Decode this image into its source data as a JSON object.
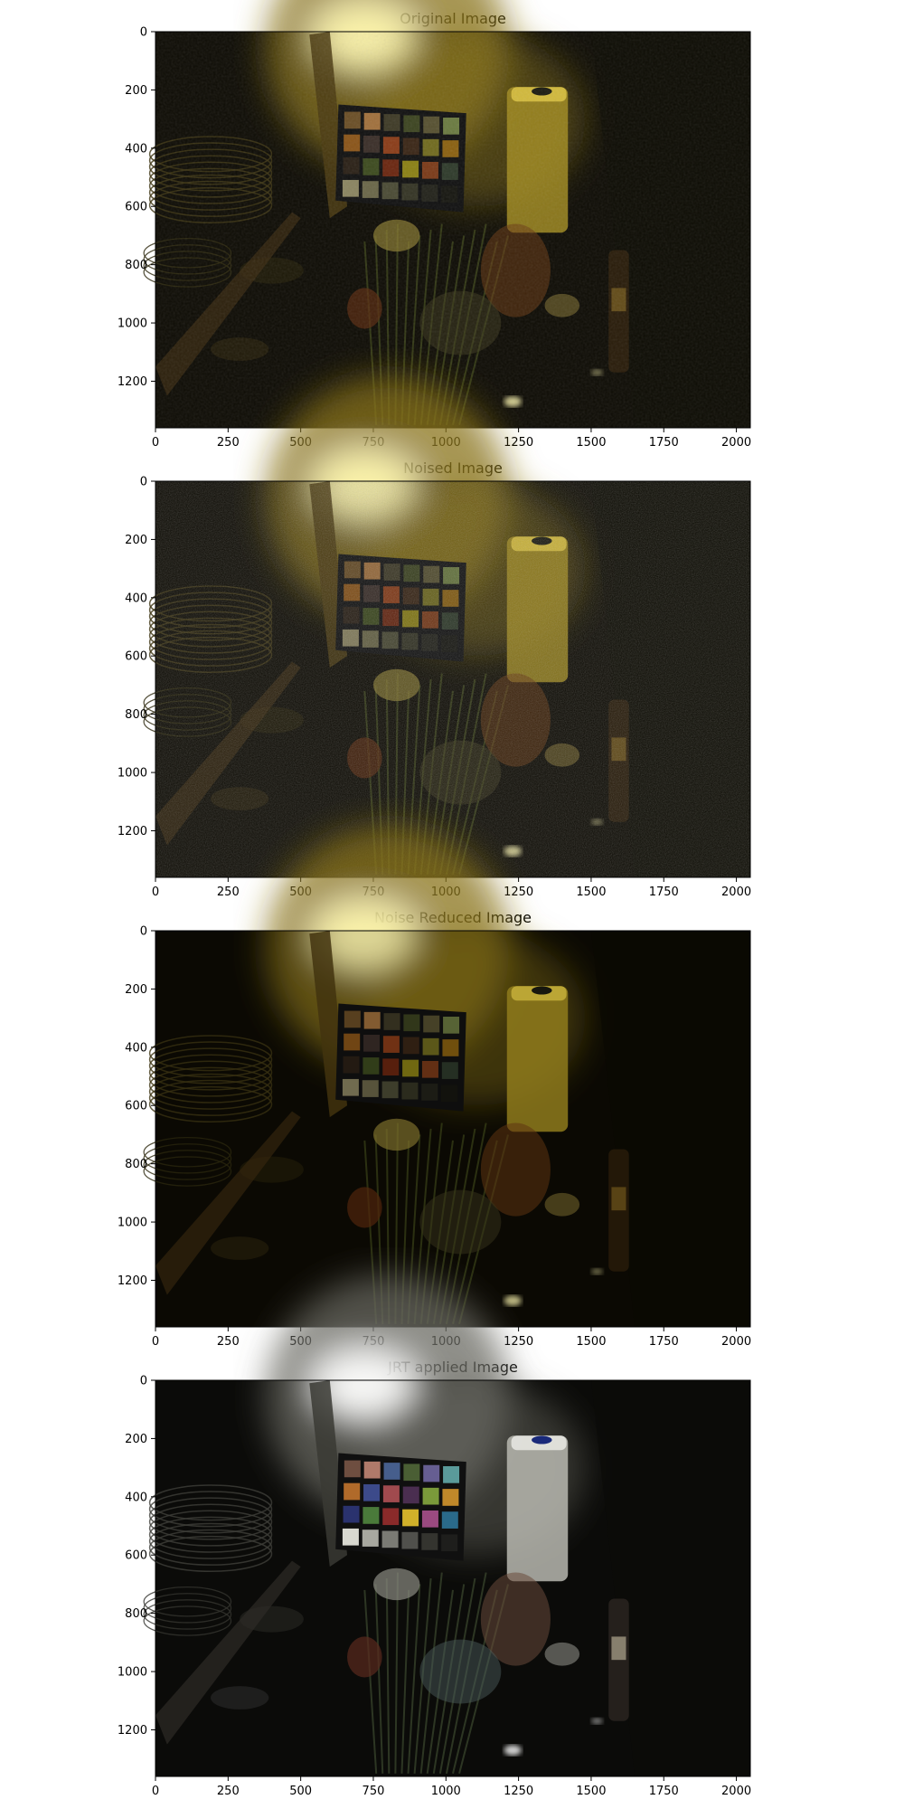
{
  "figure": {
    "panels": [
      {
        "title": "Original Image",
        "scene_tone": "original-warm-yellow",
        "brightness": 1.0,
        "x_ticks": [
          "0",
          "250",
          "500",
          "750",
          "1000",
          "1250",
          "1500",
          "1750",
          "2000"
        ],
        "y_ticks": [
          "0",
          "200",
          "400",
          "600",
          "800",
          "1000",
          "1200"
        ]
      },
      {
        "title": "Noised Image",
        "scene_tone": "noisy-warm-yellow",
        "brightness": 0.95,
        "x_ticks": [
          "0",
          "250",
          "500",
          "750",
          "1000",
          "1250",
          "1500",
          "1750",
          "2000"
        ],
        "y_ticks": [
          "0",
          "200",
          "400",
          "600",
          "800",
          "1000",
          "1200"
        ]
      },
      {
        "title": "Noise Reduced Image",
        "scene_tone": "smoothed-warm-yellow",
        "brightness": 0.9,
        "x_ticks": [
          "0",
          "250",
          "500",
          "750",
          "1000",
          "1250",
          "1500",
          "1750",
          "2000"
        ],
        "y_ticks": [
          "0",
          "200",
          "400",
          "600",
          "800",
          "1000",
          "1200"
        ]
      },
      {
        "title": "JRT applied Image",
        "scene_tone": "neutral-white-balanced",
        "brightness": 1.0,
        "x_ticks": [
          "0",
          "250",
          "500",
          "750",
          "1000",
          "1250",
          "1500",
          "1750",
          "2000"
        ],
        "y_ticks": [
          "0",
          "200",
          "400",
          "600",
          "800",
          "1000",
          "1200"
        ]
      }
    ],
    "x_range": [
      0,
      2048
    ],
    "y_range": [
      0,
      1360
    ],
    "scene_colors": {
      "warm_background": "#0d0b04",
      "warm_light": "#fff8b0",
      "warm_wall": "#8a7418",
      "neutral_background": "#0b0b09",
      "neutral_light": "#ffffff",
      "neutral_wall": "#6a6a62"
    },
    "colorchecker_warm": [
      "#6a4e26",
      "#a0703c",
      "#3e3a26",
      "#3c4420",
      "#565030",
      "#6a7a40",
      "#8a5418",
      "#3a2e28",
      "#8a3c18",
      "#3a2616",
      "#706a1e",
      "#8a6010",
      "#2a2016",
      "#3c4a1e",
      "#6a2610",
      "#8a8014",
      "#7a3a18",
      "#2e3a2a",
      "#8a8460",
      "#6a6648",
      "#4a4a34",
      "#343424",
      "#22221a",
      "#161610"
    ],
    "colorchecker_neutral": [
      "#6e4e40",
      "#b07a6a",
      "#465e8c",
      "#4a5e34",
      "#665e92",
      "#5a9a9a",
      "#b06a2a",
      "#3c4a8a",
      "#a04a4e",
      "#4a2e50",
      "#7a9a3a",
      "#c0882a",
      "#2a326e",
      "#4a7a3a",
      "#8a2a2a",
      "#d0b02a",
      "#9a4a80",
      "#2a6a8a",
      "#d8d8d0",
      "#a8a8a0",
      "#7a7a74",
      "#50504c",
      "#34342f",
      "#1e1e1c"
    ]
  }
}
